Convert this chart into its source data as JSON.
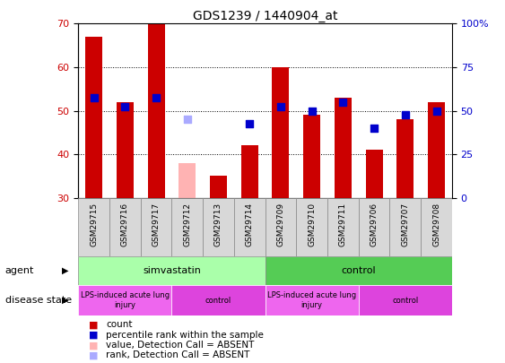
{
  "title": "GDS1239 / 1440904_at",
  "samples": [
    "GSM29715",
    "GSM29716",
    "GSM29717",
    "GSM29712",
    "GSM29713",
    "GSM29714",
    "GSM29709",
    "GSM29710",
    "GSM29711",
    "GSM29706",
    "GSM29707",
    "GSM29708"
  ],
  "bar_heights": [
    67,
    52,
    70,
    38,
    35,
    42,
    60,
    49,
    53,
    41,
    48,
    52
  ],
  "bar_colors": [
    "#cc0000",
    "#cc0000",
    "#cc0000",
    "#ffb3b3",
    "#cc0000",
    "#cc0000",
    "#cc0000",
    "#cc0000",
    "#cc0000",
    "#cc0000",
    "#cc0000",
    "#cc0000"
  ],
  "rank_values": [
    53,
    51,
    53,
    48,
    null,
    47,
    51,
    50,
    52,
    46,
    49,
    50
  ],
  "rank_absent": [
    false,
    false,
    false,
    true,
    false,
    false,
    false,
    false,
    false,
    false,
    false,
    false
  ],
  "ylim": [
    30,
    70
  ],
  "yticks": [
    30,
    40,
    50,
    60,
    70
  ],
  "yright_labels": [
    "0",
    "25",
    "50",
    "75",
    "100%"
  ],
  "yright_positions": [
    30,
    40,
    50,
    60,
    70
  ],
  "agent_groups": [
    {
      "label": "simvastatin",
      "start": 0,
      "end": 6,
      "color": "#aaffaa"
    },
    {
      "label": "control",
      "start": 6,
      "end": 12,
      "color": "#55cc55"
    }
  ],
  "disease_groups": [
    {
      "label": "LPS-induced acute lung\ninjury",
      "start": 0,
      "end": 3,
      "color": "#ee66ee"
    },
    {
      "label": "control",
      "start": 3,
      "end": 6,
      "color": "#dd44dd"
    },
    {
      "label": "LPS-induced acute lung\ninjury",
      "start": 6,
      "end": 9,
      "color": "#ee66ee"
    },
    {
      "label": "control",
      "start": 9,
      "end": 12,
      "color": "#dd44dd"
    }
  ],
  "legend_items": [
    {
      "label": "count",
      "color": "#cc0000"
    },
    {
      "label": "percentile rank within the sample",
      "color": "#0000cc"
    },
    {
      "label": "value, Detection Call = ABSENT",
      "color": "#ffb3b3"
    },
    {
      "label": "rank, Detection Call = ABSENT",
      "color": "#aaaaff"
    }
  ],
  "bar_width": 0.55
}
